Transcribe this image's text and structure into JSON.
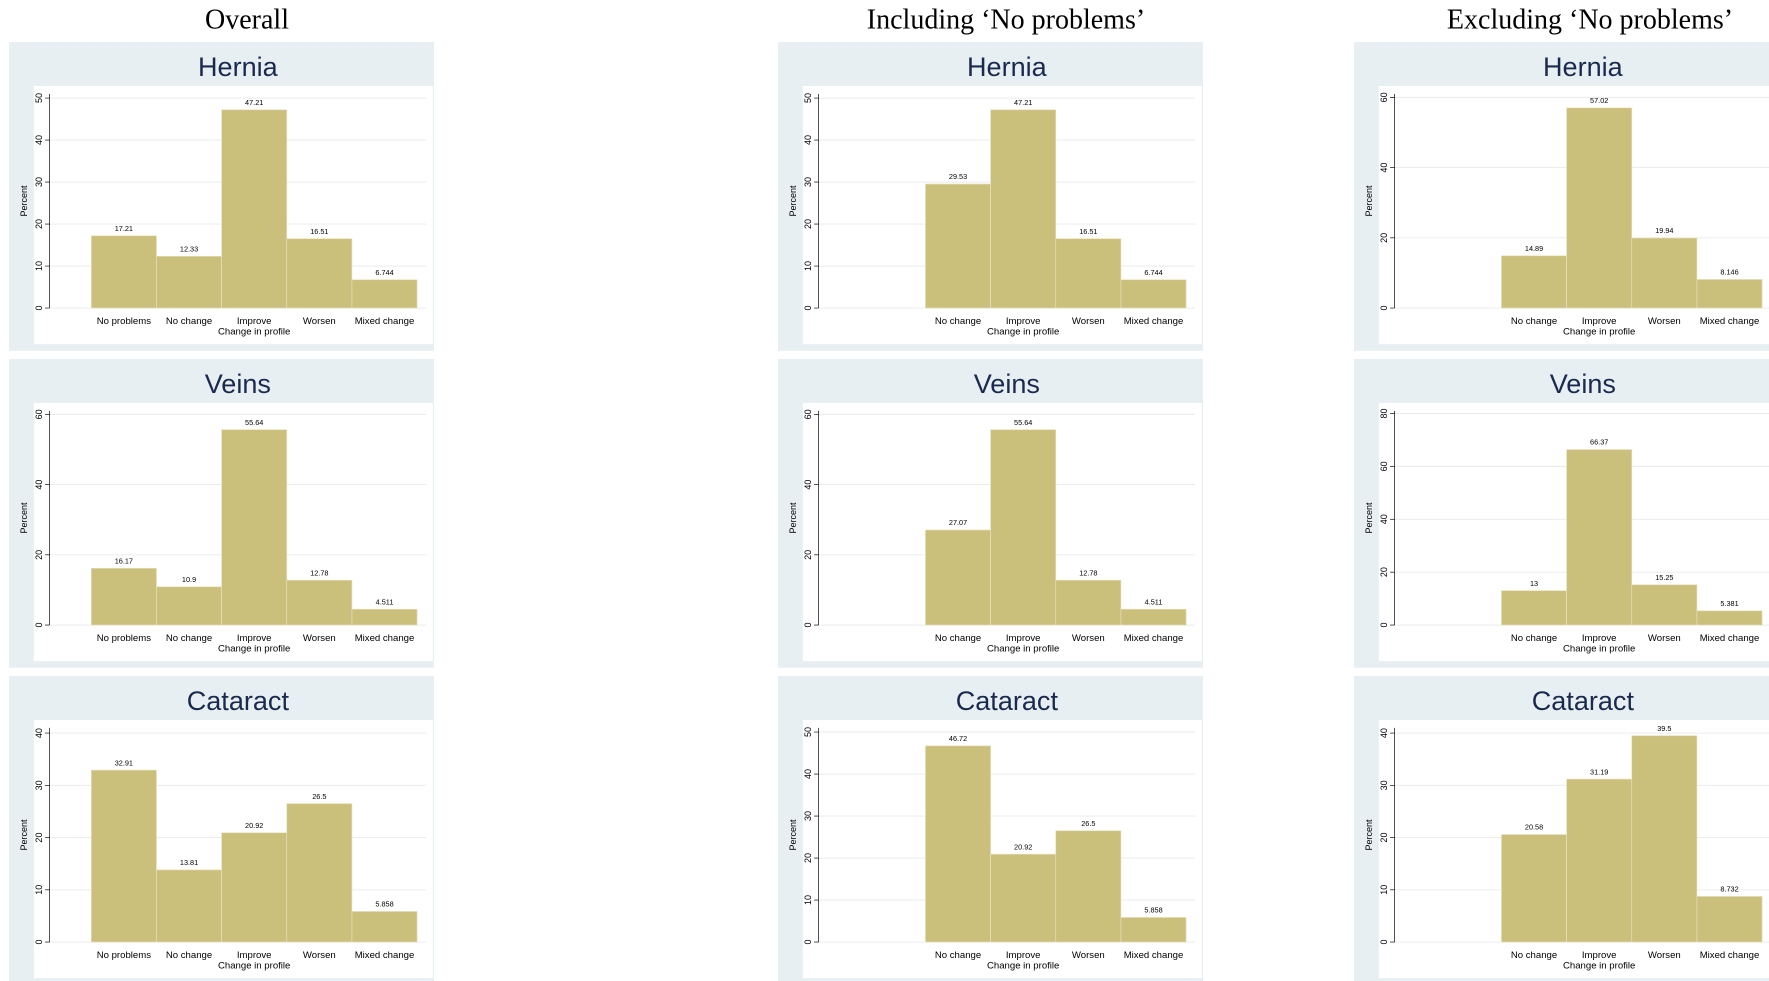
{
  "column_titles": [
    "Overall",
    "Including ‘No problems’",
    "Excluding ‘No problems’"
  ],
  "chart_data": [
    {
      "type": "bar",
      "title": "Hernia",
      "ylabel": "Percent",
      "xlabel": "Change in profile",
      "color": "#cbbf7c",
      "grid": true,
      "categories": [
        "No problems",
        "No change",
        "Improve",
        "Worsen",
        "Mixed change"
      ],
      "values": [
        17.21,
        12.33,
        47.21,
        16.51,
        6.744
      ],
      "ylim": [
        0,
        51
      ],
      "yticks": [
        0,
        10,
        20,
        30,
        40,
        50
      ]
    },
    {
      "type": "bar",
      "title": "Hernia",
      "ylabel": "Percent",
      "xlabel": "Change in profile",
      "color": "#cbbf7c",
      "grid": true,
      "categories": [
        "No change",
        "Improve",
        "Worsen",
        "Mixed change"
      ],
      "values": [
        29.53,
        47.21,
        16.51,
        6.744
      ],
      "ylim": [
        0,
        51
      ],
      "yticks": [
        0,
        10,
        20,
        30,
        40,
        50
      ]
    },
    {
      "type": "bar",
      "title": "Hernia",
      "ylabel": "Percent",
      "xlabel": "Change in profile",
      "color": "#cbbf7c",
      "grid": true,
      "categories": [
        "No change",
        "Improve",
        "Worsen",
        "Mixed change"
      ],
      "values": [
        14.89,
        57.02,
        19.94,
        8.146
      ],
      "ylim": [
        0,
        61
      ],
      "yticks": [
        0,
        20,
        40,
        60
      ]
    },
    {
      "type": "bar",
      "title": "Veins",
      "ylabel": "Percent",
      "xlabel": "Change in profile",
      "color": "#cbbf7c",
      "grid": true,
      "categories": [
        "No problems",
        "No change",
        "Improve",
        "Worsen",
        "Mixed change"
      ],
      "values": [
        16.17,
        10.9,
        55.64,
        12.78,
        4.511
      ],
      "ylim": [
        0,
        61
      ],
      "yticks": [
        0,
        20,
        40,
        60
      ]
    },
    {
      "type": "bar",
      "title": "Veins",
      "ylabel": "Percent",
      "xlabel": "Change in profile",
      "color": "#cbbf7c",
      "grid": true,
      "categories": [
        "No change",
        "Improve",
        "Worsen",
        "Mixed change"
      ],
      "values": [
        27.07,
        55.64,
        12.78,
        4.511
      ],
      "ylim": [
        0,
        61
      ],
      "yticks": [
        0,
        20,
        40,
        60
      ]
    },
    {
      "type": "bar",
      "title": "Veins",
      "ylabel": "Percent",
      "xlabel": "Change in profile",
      "color": "#cbbf7c",
      "grid": true,
      "categories": [
        "No change",
        "Improve",
        "Worsen",
        "Mixed change"
      ],
      "values": [
        13,
        66.37,
        15.25,
        5.381
      ],
      "ylim": [
        0,
        81
      ],
      "yticks": [
        0,
        20,
        40,
        60,
        80
      ]
    },
    {
      "type": "bar",
      "title": "Cataract",
      "ylabel": "Percent",
      "xlabel": "Change in profile",
      "color": "#cbbf7c",
      "grid": true,
      "categories": [
        "No problems",
        "No change",
        "Improve",
        "Worsen",
        "Mixed change"
      ],
      "values": [
        32.91,
        13.81,
        20.92,
        26.5,
        5.858
      ],
      "ylim": [
        0,
        41
      ],
      "yticks": [
        0,
        10,
        20,
        30,
        40
      ]
    },
    {
      "type": "bar",
      "title": "Cataract",
      "ylabel": "Percent",
      "xlabel": "Change in profile",
      "color": "#cbbf7c",
      "grid": true,
      "categories": [
        "No change",
        "Improve",
        "Worsen",
        "Mixed change"
      ],
      "values": [
        46.72,
        20.92,
        26.5,
        5.858
      ],
      "ylim": [
        0,
        51
      ],
      "yticks": [
        0,
        10,
        20,
        30,
        40,
        50
      ]
    },
    {
      "type": "bar",
      "title": "Cataract",
      "ylabel": "Percent",
      "xlabel": "Change in profile",
      "color": "#cbbf7c",
      "grid": true,
      "categories": [
        "No change",
        "Improve",
        "Worsen",
        "Mixed change"
      ],
      "values": [
        20.58,
        31.19,
        39.5,
        8.732
      ],
      "ylim": [
        0,
        41
      ],
      "yticks": [
        0,
        10,
        20,
        30,
        40
      ]
    }
  ]
}
